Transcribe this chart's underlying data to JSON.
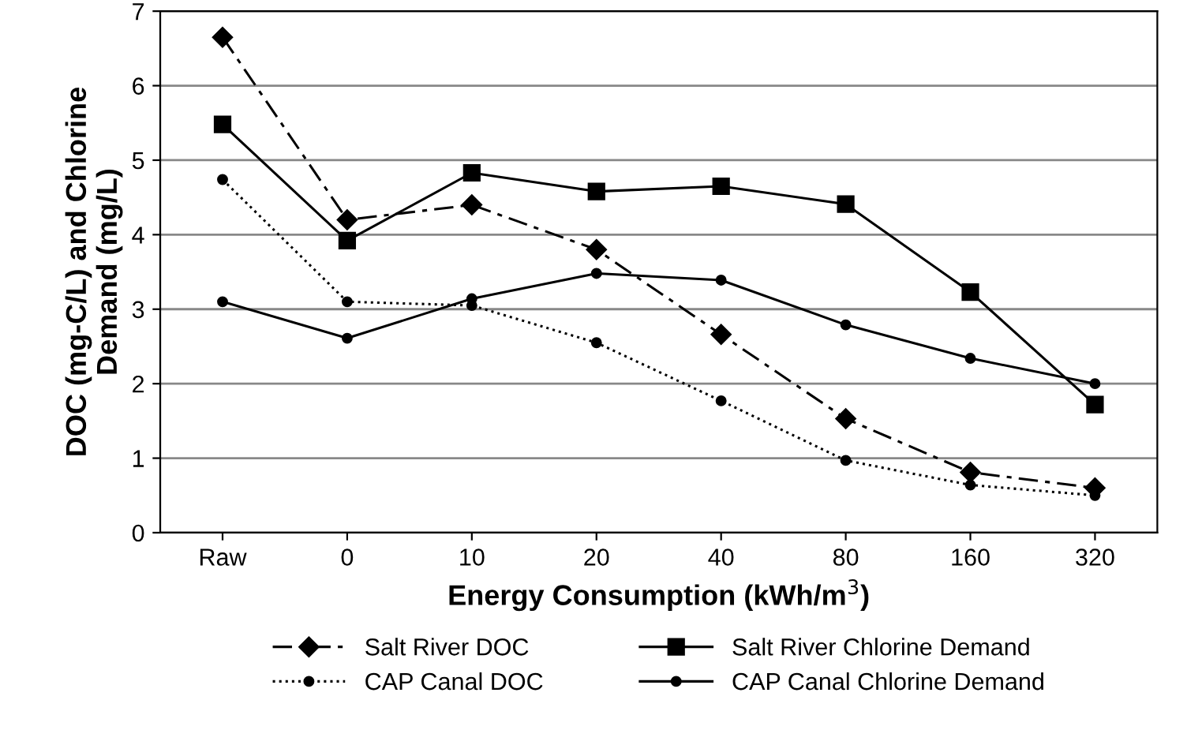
{
  "chart_data": {
    "type": "line",
    "xlabel": "Energy Consumption (kWh/m$^{3}$)",
    "ylabel": "DOC (mg-C/L) and Chlorine\nDemand (mg/L)",
    "categories": [
      "Raw",
      "0",
      "10",
      "20",
      "40",
      "80",
      "160",
      "320"
    ],
    "ylim": [
      0,
      7
    ],
    "yticks": [
      0,
      1,
      2,
      3,
      4,
      5,
      6,
      7
    ],
    "grid": "y",
    "legend": "bottom",
    "series": [
      {
        "name": "Salt River DOC",
        "color": "#000000",
        "marker": "diamond",
        "line_style": "dashdot",
        "values": [
          6.65,
          4.2,
          4.4,
          3.8,
          2.66,
          1.53,
          0.81,
          0.6
        ]
      },
      {
        "name": "CAP Canal DOC",
        "color": "#000000",
        "marker": "circle",
        "line_style": "dotted",
        "values": [
          4.74,
          3.1,
          3.05,
          2.55,
          1.77,
          0.97,
          0.64,
          0.5
        ]
      },
      {
        "name": "Salt River Chlorine Demand",
        "color": "#000000",
        "marker": "square",
        "line_style": "solid",
        "values": [
          5.48,
          3.92,
          4.83,
          4.58,
          4.65,
          4.41,
          3.23,
          1.72
        ]
      },
      {
        "name": "CAP Canal Chlorine Demand",
        "color": "#000000",
        "marker": "circle",
        "line_style": "solid",
        "values": [
          3.1,
          2.61,
          3.14,
          3.48,
          3.39,
          2.79,
          2.34,
          2.0
        ]
      }
    ]
  }
}
